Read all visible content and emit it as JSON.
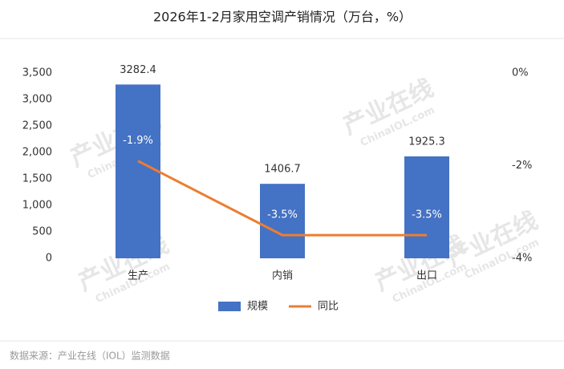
{
  "chart_data": {
    "type": "bar-line",
    "title": "2026年1-2月家用空调产销情况（万台，%）",
    "source": "数据来源：产业在线（IOL）监测数据",
    "watermark": "产业在线",
    "watermark_sub": "ChinaIOL.com",
    "categories": [
      "生产",
      "内销",
      "出口"
    ],
    "series": [
      {
        "name": "规模",
        "type": "bar",
        "color": "#4472c4",
        "values": [
          3282.4,
          1406.7,
          1925.3
        ],
        "value_labels": [
          "3282.4",
          "1406.7",
          "1925.3"
        ]
      },
      {
        "name": "同比",
        "type": "line",
        "axis": "y2",
        "color": "#ed7d31",
        "values": [
          -1.9,
          -3.5,
          -3.5
        ],
        "value_labels": [
          "-1.9%",
          "-3.5%",
          "-3.5%"
        ]
      }
    ],
    "ylim": [
      0,
      3500
    ],
    "yticks": [
      0,
      500,
      {
        "value": 1000,
        "label": "1,000"
      },
      {
        "value": 1500,
        "label": "1,500"
      },
      {
        "value": 2000,
        "label": "2,000"
      },
      {
        "value": 2500,
        "label": "2,500"
      },
      {
        "value": 3000,
        "label": "3,000"
      },
      {
        "value": 3500,
        "label": "3,500"
      }
    ],
    "y2lim": [
      -4,
      0
    ],
    "y2ticks": [
      {
        "value": 0,
        "label": "0%"
      },
      {
        "value": -2,
        "label": "-2%"
      },
      {
        "value": -4,
        "label": "-4%"
      }
    ],
    "grid": false
  }
}
